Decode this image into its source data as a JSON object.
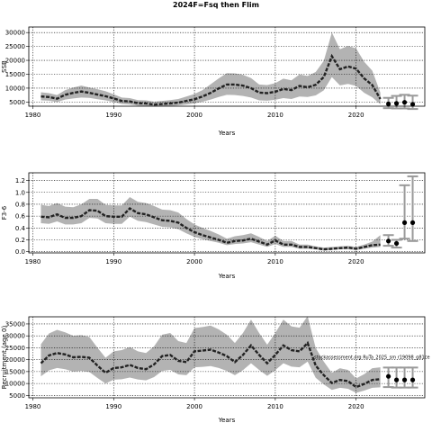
{
  "chart_data": {
    "title": "2024F=Fsq then Flim",
    "x_ticks": [
      1980,
      1990,
      2000,
      2010,
      2020
    ],
    "panels": [
      {
        "type": "line",
        "xlabel": "Years",
        "ylabel": "SSB",
        "ylim": [
          3500,
          32000
        ],
        "y_ticks": [
          5000,
          10000,
          15000,
          20000,
          25000,
          30000
        ],
        "x": [
          1981,
          1982,
          1983,
          1984,
          1985,
          1986,
          1987,
          1988,
          1989,
          1990,
          1991,
          1992,
          1993,
          1994,
          1995,
          1996,
          1997,
          1998,
          1999,
          2000,
          2001,
          2002,
          2003,
          2004,
          2005,
          2006,
          2007,
          2008,
          2009,
          2010,
          2011,
          2012,
          2013,
          2014,
          2015,
          2016,
          2017,
          2018,
          2019,
          2020,
          2021,
          2022,
          2023
        ],
        "estimate": [
          7000,
          6800,
          6200,
          7600,
          8300,
          8800,
          8300,
          7700,
          7100,
          6300,
          5400,
          5200,
          4600,
          4500,
          4100,
          4300,
          4500,
          4800,
          5400,
          6000,
          7000,
          8300,
          9900,
          11300,
          11300,
          10900,
          10000,
          8400,
          8200,
          8700,
          9700,
          9300,
          10800,
          10300,
          11200,
          14000,
          21500,
          16800,
          17800,
          17000,
          13500,
          11100,
          6100
        ],
        "lower": [
          5600,
          5500,
          5000,
          5900,
          6300,
          6600,
          6500,
          6000,
          5600,
          5000,
          4300,
          4100,
          3700,
          3600,
          3400,
          3500,
          3600,
          3800,
          4100,
          4500,
          5100,
          5900,
          6800,
          7600,
          7500,
          7200,
          6600,
          5600,
          5500,
          5800,
          6400,
          6100,
          7000,
          6800,
          7400,
          9200,
          14000,
          11000,
          11500,
          10800,
          8300,
          6700,
          4200
        ],
        "upper": [
          8500,
          8200,
          7500,
          9300,
          10200,
          10900,
          10200,
          9600,
          8900,
          7800,
          6600,
          6400,
          5700,
          5600,
          5100,
          5400,
          5700,
          6100,
          7000,
          7900,
          9300,
          11400,
          13500,
          15400,
          15300,
          14800,
          13600,
          11300,
          11100,
          11800,
          13400,
          12800,
          14900,
          14400,
          15800,
          19800,
          30000,
          24000,
          25200,
          24300,
          19500,
          16300,
          8400
        ],
        "projections": [
          {
            "year": 2024,
            "median": 4300,
            "lower": 2800,
            "upper": 6500
          },
          {
            "year": 2025,
            "median": 4500,
            "lower": 2700,
            "upper": 7200
          },
          {
            "year": 2026,
            "median": 4900,
            "lower": 2700,
            "upper": 7600
          },
          {
            "year": 2027,
            "median": 4200,
            "lower": 2500,
            "upper": 7300
          }
        ]
      },
      {
        "type": "line",
        "xlabel": "Years",
        "ylabel": "F3-6",
        "ylim": [
          -0.02,
          1.33
        ],
        "y_ticks": [
          0.0,
          0.2,
          0.4,
          0.6,
          0.8,
          1.0,
          1.2
        ],
        "x": [
          1981,
          1982,
          1983,
          1984,
          1985,
          1986,
          1987,
          1988,
          1989,
          1990,
          1991,
          1992,
          1993,
          1994,
          1995,
          1996,
          1997,
          1998,
          1999,
          2000,
          2001,
          2002,
          2003,
          2004,
          2005,
          2006,
          2007,
          2008,
          2009,
          2010,
          2011,
          2012,
          2013,
          2014,
          2015,
          2016,
          2017,
          2018,
          2019,
          2020,
          2021,
          2022,
          2023
        ],
        "estimate": [
          0.59,
          0.58,
          0.63,
          0.57,
          0.57,
          0.6,
          0.7,
          0.69,
          0.6,
          0.59,
          0.59,
          0.73,
          0.65,
          0.63,
          0.58,
          0.53,
          0.52,
          0.49,
          0.4,
          0.33,
          0.28,
          0.24,
          0.2,
          0.15,
          0.18,
          0.19,
          0.22,
          0.17,
          0.12,
          0.19,
          0.12,
          0.12,
          0.08,
          0.08,
          0.06,
          0.04,
          0.05,
          0.06,
          0.07,
          0.05,
          0.08,
          0.11,
          0.12
        ],
        "lower": [
          0.48,
          0.47,
          0.51,
          0.46,
          0.46,
          0.48,
          0.57,
          0.56,
          0.48,
          0.47,
          0.47,
          0.59,
          0.52,
          0.5,
          0.46,
          0.42,
          0.41,
          0.38,
          0.31,
          0.25,
          0.21,
          0.18,
          0.15,
          0.11,
          0.13,
          0.14,
          0.16,
          0.12,
          0.08,
          0.13,
          0.08,
          0.08,
          0.05,
          0.05,
          0.04,
          0.02,
          0.03,
          0.04,
          0.04,
          0.03,
          0.05,
          0.07,
          0.08
        ],
        "upper": [
          0.79,
          0.77,
          0.82,
          0.76,
          0.75,
          0.8,
          0.89,
          0.89,
          0.79,
          0.78,
          0.78,
          0.92,
          0.84,
          0.82,
          0.77,
          0.71,
          0.7,
          0.66,
          0.55,
          0.46,
          0.4,
          0.35,
          0.29,
          0.22,
          0.26,
          0.28,
          0.31,
          0.25,
          0.18,
          0.27,
          0.18,
          0.18,
          0.12,
          0.12,
          0.09,
          0.07,
          0.08,
          0.09,
          0.1,
          0.08,
          0.12,
          0.17,
          0.28
        ],
        "projections": [
          {
            "year": 2024,
            "median": 0.18,
            "lower": 0.1,
            "upper": 0.28
          },
          {
            "year": 2025,
            "median": 0.14,
            "lower": 0.07,
            "upper": 0.2
          },
          {
            "year": 2026,
            "median": 0.49,
            "lower": 0.22,
            "upper": 1.12
          },
          {
            "year": 2027,
            "median": 0.49,
            "lower": 0.18,
            "upper": 1.27
          }
        ]
      },
      {
        "type": "line",
        "xlabel": "Years",
        "ylabel": "Recruitment (age 0)",
        "ylim": [
          4000,
          38000
        ],
        "y_ticks": [
          5000,
          10000,
          15000,
          20000,
          25000,
          30000,
          35000
        ],
        "x": [
          1981,
          1982,
          1983,
          1984,
          1985,
          1986,
          1987,
          1988,
          1989,
          1990,
          1991,
          1992,
          1993,
          1994,
          1995,
          1996,
          1997,
          1998,
          1999,
          2000,
          2001,
          2002,
          2003,
          2004,
          2005,
          2006,
          2007,
          2008,
          2009,
          2010,
          2011,
          2012,
          2013,
          2014,
          2015,
          2016,
          2017,
          2018,
          2019,
          2020,
          2021,
          2022,
          2023
        ],
        "estimate": [
          18500,
          21800,
          22800,
          22200,
          21000,
          21200,
          20800,
          17500,
          14500,
          16500,
          16800,
          17800,
          16500,
          16000,
          18000,
          21500,
          22000,
          19500,
          19000,
          23500,
          23800,
          24200,
          23000,
          21500,
          19000,
          22000,
          26000,
          22000,
          18500,
          22000,
          26000,
          24000,
          23500,
          27000,
          17500,
          13500,
          10200,
          11500,
          11000,
          8500,
          9800,
          11500,
          11800
        ],
        "lower": [
          13000,
          15500,
          16500,
          16000,
          15000,
          15300,
          14800,
          12300,
          10000,
          11600,
          11800,
          12500,
          11700,
          11300,
          12700,
          15300,
          15700,
          13800,
          13500,
          16800,
          17000,
          17300,
          16500,
          15300,
          13500,
          15600,
          18500,
          15700,
          13200,
          15600,
          18500,
          17100,
          16800,
          19200,
          12400,
          9600,
          7300,
          8200,
          7800,
          6100,
          7000,
          8200,
          8400
        ],
        "upper": [
          26500,
          31000,
          32500,
          31500,
          30000,
          30300,
          29500,
          25000,
          20800,
          23500,
          24000,
          25300,
          23500,
          22800,
          25600,
          30500,
          31200,
          27800,
          27000,
          33300,
          33700,
          34300,
          32700,
          30500,
          27000,
          31200,
          36800,
          31200,
          26300,
          31200,
          36800,
          34000,
          33400,
          38300,
          24900,
          19200,
          14500,
          16400,
          15700,
          12100,
          13900,
          16400,
          16800
        ],
        "projections": [
          {
            "year": 2024,
            "median": 13000,
            "lower": 8500,
            "upper": 16700
          },
          {
            "year": 2025,
            "median": 11500,
            "lower": 8300,
            "upper": 16700
          },
          {
            "year": 2026,
            "median": 11500,
            "lower": 8300,
            "upper": 16700
          },
          {
            "year": 2027,
            "median": 11500,
            "lower": 8300,
            "upper": 16700
          }
        ],
        "annotation": "stockassessment.org RuTa_2025_sm r19098_g81ce"
      }
    ]
  }
}
